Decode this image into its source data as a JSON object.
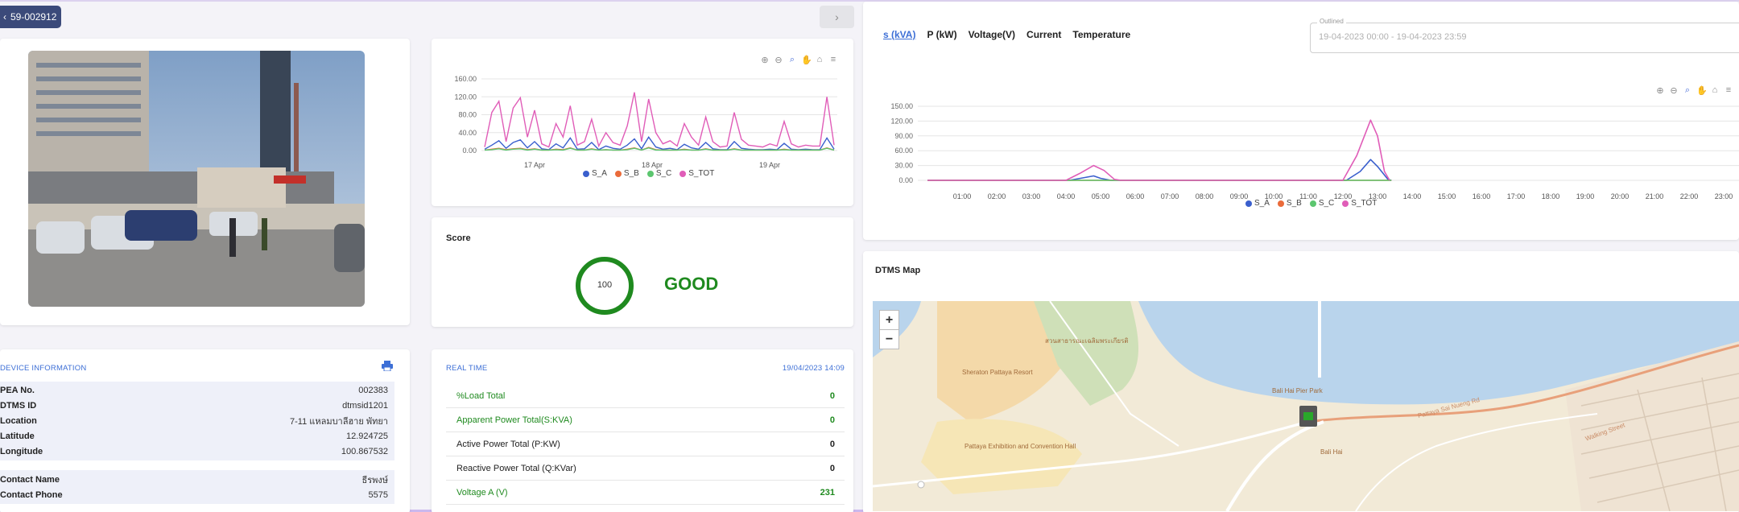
{
  "device": {
    "id": "59-002912"
  },
  "icons": {
    "back": "chevron-left-icon",
    "next": "chevron-right-icon",
    "print": "printer-icon"
  },
  "mini_chart": {
    "chart_data": {
      "type": "line",
      "yticks": [
        "160.00",
        "120.00",
        "80.00",
        "40.00",
        "0.00"
      ],
      "ylim": [
        0,
        160
      ],
      "xticks": [
        "17 Apr",
        "18 Apr",
        "19 Apr"
      ],
      "series": [
        {
          "name": "S_A",
          "color": "#3a5fcd",
          "values": [
            3,
            12,
            22,
            5,
            18,
            24,
            6,
            20,
            4,
            2,
            15,
            6,
            28,
            3,
            4,
            18,
            2,
            10,
            5,
            3,
            12,
            26,
            4,
            30,
            8,
            3,
            5,
            2,
            14,
            6,
            3,
            18,
            4,
            2,
            2,
            20,
            5,
            3,
            2,
            2,
            3,
            2,
            16,
            3,
            2,
            3,
            2,
            2,
            28,
            3
          ]
        },
        {
          "name": "S_B",
          "color": "#ea6b3a",
          "values": [
            1,
            3,
            5,
            2,
            4,
            5,
            2,
            4,
            1,
            1,
            3,
            2,
            6,
            1,
            1,
            4,
            1,
            2,
            1,
            1,
            3,
            6,
            1,
            7,
            2,
            1,
            1,
            1,
            3,
            1,
            1,
            4,
            1,
            1,
            1,
            4,
            1,
            1,
            1,
            1,
            1,
            1,
            3,
            1,
            1,
            1,
            1,
            1,
            6,
            1
          ]
        },
        {
          "name": "S_C",
          "color": "#5cc66f",
          "values": [
            1,
            2,
            4,
            1,
            3,
            4,
            1,
            3,
            1,
            1,
            2,
            1,
            5,
            1,
            1,
            3,
            1,
            2,
            1,
            1,
            2,
            5,
            1,
            6,
            1,
            1,
            1,
            1,
            2,
            1,
            1,
            3,
            1,
            1,
            1,
            3,
            1,
            1,
            1,
            1,
            1,
            1,
            2,
            1,
            1,
            1,
            1,
            1,
            5,
            1
          ]
        },
        {
          "name": "S_TOT",
          "color": "#e05db8",
          "values": [
            8,
            85,
            110,
            20,
            95,
            118,
            30,
            90,
            15,
            8,
            60,
            30,
            100,
            12,
            20,
            70,
            10,
            40,
            18,
            12,
            55,
            130,
            20,
            115,
            40,
            15,
            22,
            10,
            60,
            30,
            12,
            75,
            20,
            8,
            10,
            85,
            25,
            12,
            10,
            8,
            15,
            10,
            65,
            15,
            8,
            12,
            10,
            10,
            120,
            12
          ]
        }
      ]
    }
  },
  "score": {
    "title": "Score",
    "value": "100",
    "rating": "GOOD",
    "color": "#1f8a1f"
  },
  "device_info": {
    "title": "DEVICE INFORMATION",
    "rows": [
      {
        "label": "PEA No.",
        "value": "002383"
      },
      {
        "label": "DTMS ID",
        "value": "dtmsid1201"
      },
      {
        "label": "Location",
        "value": "7-11 แหลมบาลีฮาย พัทยา"
      },
      {
        "label": "Latitude",
        "value": "12.924725"
      },
      {
        "label": "Longitude",
        "value": "100.867532"
      }
    ],
    "contact_rows": [
      {
        "label": "Contact Name",
        "value": "ธีรพงษ์"
      },
      {
        "label": "Contact Phone",
        "value": "5575"
      }
    ]
  },
  "realtime": {
    "title": "REAL TIME",
    "timestamp": "19/04/2023 14:09",
    "rows": [
      {
        "label": "%Load Total",
        "value": "0",
        "color": "#1f8a1f"
      },
      {
        "label": "Apparent Power Total(S:KVA)",
        "value": "0",
        "color": "#1f8a1f"
      },
      {
        "label": "Active Power Total (P:KW)",
        "value": "0",
        "color": "#222222"
      },
      {
        "label": "Reactive Power Total (Q:KVar)",
        "value": "0",
        "color": "#222222"
      },
      {
        "label": "Voltage A (V)",
        "value": "231",
        "color": "#1f8a1f"
      }
    ]
  },
  "tabs": [
    "s (kVA)",
    "P (kW)",
    "Voltage(V)",
    "Current",
    "Temperature"
  ],
  "date_range": {
    "label": "Outlined",
    "value": "19-04-2023 00:00 - 19-04-2023 23:59"
  },
  "big_chart": {
    "chart_data": {
      "type": "line",
      "yticks": [
        "150.00",
        "120.00",
        "90.00",
        "60.00",
        "30.00",
        "0.00"
      ],
      "ylim": [
        0,
        150
      ],
      "xticks": [
        "01:00",
        "02:00",
        "03:00",
        "04:00",
        "05:00",
        "06:00",
        "07:00",
        "08:00",
        "09:00",
        "10:00",
        "11:00",
        "12:00",
        "13:00",
        "14:00",
        "15:00",
        "16:00",
        "17:00",
        "18:00",
        "19:00",
        "20:00",
        "21:00",
        "22:00",
        "23:00"
      ],
      "series": [
        {
          "name": "S_A",
          "color": "#3a5fcd",
          "points": [
            [
              0,
              0
            ],
            [
              4.1,
              0
            ],
            [
              4.5,
              5
            ],
            [
              4.8,
              9
            ],
            [
              5.0,
              4
            ],
            [
              5.3,
              0
            ],
            [
              12.1,
              0
            ],
            [
              12.5,
              18
            ],
            [
              12.8,
              42
            ],
            [
              13.0,
              28
            ],
            [
              13.3,
              2
            ],
            [
              13.4,
              0
            ]
          ]
        },
        {
          "name": "S_B",
          "color": "#ea6b3a",
          "points": [
            [
              0,
              0
            ],
            [
              13.4,
              0
            ]
          ]
        },
        {
          "name": "S_C",
          "color": "#5cc66f",
          "points": [
            [
              0,
              0
            ],
            [
              13.4,
              0
            ]
          ]
        },
        {
          "name": "S_TOT",
          "color": "#e05db8",
          "points": [
            [
              0,
              0
            ],
            [
              4.0,
              0
            ],
            [
              4.4,
              14
            ],
            [
              4.8,
              30
            ],
            [
              5.1,
              20
            ],
            [
              5.4,
              2
            ],
            [
              5.6,
              0
            ],
            [
              12.0,
              0
            ],
            [
              12.4,
              50
            ],
            [
              12.8,
              122
            ],
            [
              13.0,
              90
            ],
            [
              13.2,
              18
            ],
            [
              13.35,
              0
            ]
          ]
        }
      ]
    }
  },
  "map": {
    "title": "DTMS Map",
    "zoom_in": "+",
    "zoom_out": "−",
    "labels": [
      "สวนสาธารณะเฉลิมพระเกียรติ",
      "Bali Hai Pier Park",
      "Pattaya Exhibition and Convention Hall",
      "Sheraton Pattaya Resort",
      "Bali Hai",
      "Pattaya Sai Nueng Rd",
      "Walking Street"
    ]
  }
}
